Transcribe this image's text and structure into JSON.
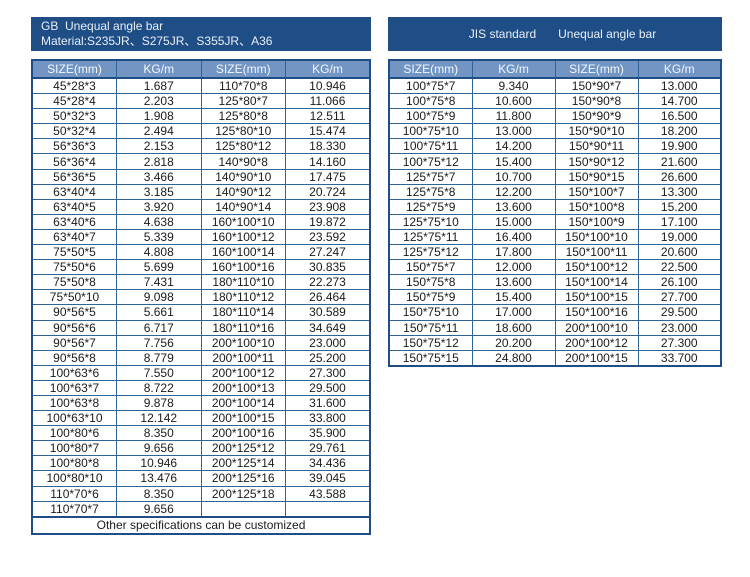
{
  "colors": {
    "title_bar_bg": "#1f4e87",
    "header_row_bg": "#7295c4",
    "grid_border": "#2e6496",
    "cell_text": "#1b1b1b",
    "header_text": "#f3f7fc"
  },
  "gb": {
    "title_line1": "GB  Unequal angle bar",
    "title_line2": "Material:S235JR、S275JR、S355JR、A36",
    "headers": [
      "SIZE(mm)",
      "KG/m",
      "SIZE(mm)",
      "KG/m"
    ],
    "rows": [
      [
        "45*28*3",
        "1.687",
        "110*70*8",
        "10.946"
      ],
      [
        "45*28*4",
        "2.203",
        "125*80*7",
        "11.066"
      ],
      [
        "50*32*3",
        "1.908",
        "125*80*8",
        "12.511"
      ],
      [
        "50*32*4",
        "2.494",
        "125*80*10",
        "15.474"
      ],
      [
        "56*36*3",
        "2.153",
        "125*80*12",
        "18.330"
      ],
      [
        "56*36*4",
        "2.818",
        "140*90*8",
        "14.160"
      ],
      [
        "56*36*5",
        "3.466",
        "140*90*10",
        "17.475"
      ],
      [
        "63*40*4",
        "3.185",
        "140*90*12",
        "20.724"
      ],
      [
        "63*40*5",
        "3.920",
        "140*90*14",
        "23.908"
      ],
      [
        "63*40*6",
        "4.638",
        "160*100*10",
        "19.872"
      ],
      [
        "63*40*7",
        "5.339",
        "160*100*12",
        "23.592"
      ],
      [
        "75*50*5",
        "4.808",
        "160*100*14",
        "27.247"
      ],
      [
        "75*50*6",
        "5.699",
        "160*100*16",
        "30.835"
      ],
      [
        "75*50*8",
        "7.431",
        "180*110*10",
        "22.273"
      ],
      [
        "75*50*10",
        "9.098",
        "180*110*12",
        "26.464"
      ],
      [
        "90*56*5",
        "5.661",
        "180*110*14",
        "30.589"
      ],
      [
        "90*56*6",
        "6.717",
        "180*110*16",
        "34.649"
      ],
      [
        "90*56*7",
        "7.756",
        "200*100*10",
        "23.000"
      ],
      [
        "90*56*8",
        "8.779",
        "200*100*11",
        "25.200"
      ],
      [
        "100*63*6",
        "7.550",
        "200*100*12",
        "27.300"
      ],
      [
        "100*63*7",
        "8.722",
        "200*100*13",
        "29.500"
      ],
      [
        "100*63*8",
        "9.878",
        "200*100*14",
        "31.600"
      ],
      [
        "100*63*10",
        "12.142",
        "200*100*15",
        "33.800"
      ],
      [
        "100*80*6",
        "8.350",
        "200*100*16",
        "35.900"
      ],
      [
        "100*80*7",
        "9.656",
        "200*125*12",
        "29.761"
      ],
      [
        "100*80*8",
        "10.946",
        "200*125*14",
        "34.436"
      ],
      [
        "100*80*10",
        "13.476",
        "200*125*16",
        "39.045"
      ],
      [
        "110*70*6",
        "8.350",
        "200*125*18",
        "43.588"
      ],
      [
        "110*70*7",
        "9.656",
        "",
        ""
      ]
    ],
    "footer": "Other specifications can be customized"
  },
  "jis": {
    "title_left": "JIS standard",
    "title_right": "Unequal angle bar",
    "headers": [
      "SIZE(mm)",
      "KG/m",
      "SIZE(mm)",
      "KG/m"
    ],
    "rows": [
      [
        "100*75*7",
        "9.340",
        "150*90*7",
        "13.000"
      ],
      [
        "100*75*8",
        "10.600",
        "150*90*8",
        "14.700"
      ],
      [
        "100*75*9",
        "11.800",
        "150*90*9",
        "16.500"
      ],
      [
        "100*75*10",
        "13.000",
        "150*90*10",
        "18.200"
      ],
      [
        "100*75*11",
        "14.200",
        "150*90*11",
        "19.900"
      ],
      [
        "100*75*12",
        "15.400",
        "150*90*12",
        "21.600"
      ],
      [
        "125*75*7",
        "10.700",
        "150*90*15",
        "26.600"
      ],
      [
        "125*75*8",
        "12.200",
        "150*100*7",
        "13.300"
      ],
      [
        "125*75*9",
        "13.600",
        "150*100*8",
        "15.200"
      ],
      [
        "125*75*10",
        "15.000",
        "150*100*9",
        "17.100"
      ],
      [
        "125*75*11",
        "16.400",
        "150*100*10",
        "19.000"
      ],
      [
        "125*75*12",
        "17.800",
        "150*100*11",
        "20.600"
      ],
      [
        "150*75*7",
        "12.000",
        "150*100*12",
        "22.500"
      ],
      [
        "150*75*8",
        "13.600",
        "150*100*14",
        "26.100"
      ],
      [
        "150*75*9",
        "15.400",
        "150*100*15",
        "27.700"
      ],
      [
        "150*75*10",
        "17.000",
        "150*100*16",
        "29.500"
      ],
      [
        "150*75*11",
        "18.600",
        "200*100*10",
        "23.000"
      ],
      [
        "150*75*12",
        "20.200",
        "200*100*12",
        "27.300"
      ],
      [
        "150*75*15",
        "24.800",
        "200*100*15",
        "33.700"
      ]
    ]
  }
}
